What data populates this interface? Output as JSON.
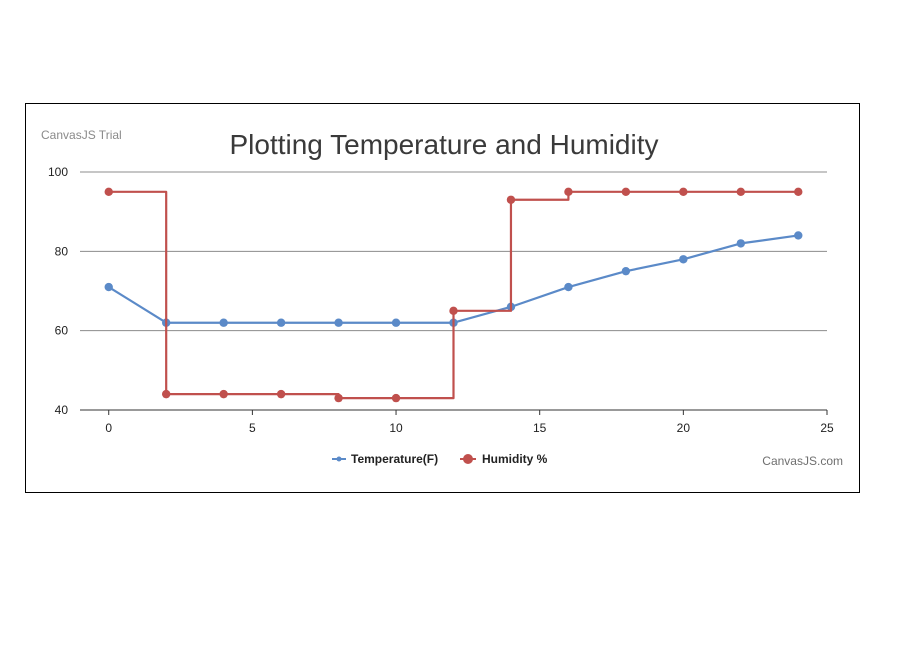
{
  "watermark": "CanvasJS Trial",
  "credit": "CanvasJS.com",
  "colors": {
    "temperature": "#5b8ac8",
    "humidity": "#c0504d",
    "grid": "#8c8c8c",
    "axis": "#333333"
  },
  "chart_data": {
    "type": "line",
    "title": "Plotting Temperature and Humidity",
    "xlabel": "",
    "ylabel": "",
    "xlim": [
      -1,
      25
    ],
    "ylim": [
      40,
      100
    ],
    "x_ticks": [
      "0",
      "5",
      "10",
      "15",
      "20",
      "25"
    ],
    "y_ticks": [
      "40",
      "60",
      "80",
      "100"
    ],
    "grid": true,
    "legend": "bottom-center",
    "series": [
      {
        "name": "Temperature(F)",
        "style": "line",
        "x": [
          0,
          2,
          4,
          6,
          8,
          10,
          12,
          14,
          16,
          18,
          20,
          22,
          24
        ],
        "values": [
          71,
          62,
          62,
          62,
          62,
          62,
          62,
          66,
          71,
          75,
          78,
          82,
          84
        ]
      },
      {
        "name": "Humidity %",
        "style": "step",
        "x": [
          0,
          2,
          4,
          6,
          8,
          10,
          12,
          14,
          16,
          18,
          20,
          22,
          24
        ],
        "values": [
          95,
          44,
          44,
          44,
          43,
          43,
          65,
          93,
          95,
          95,
          95,
          95,
          95
        ]
      }
    ]
  }
}
